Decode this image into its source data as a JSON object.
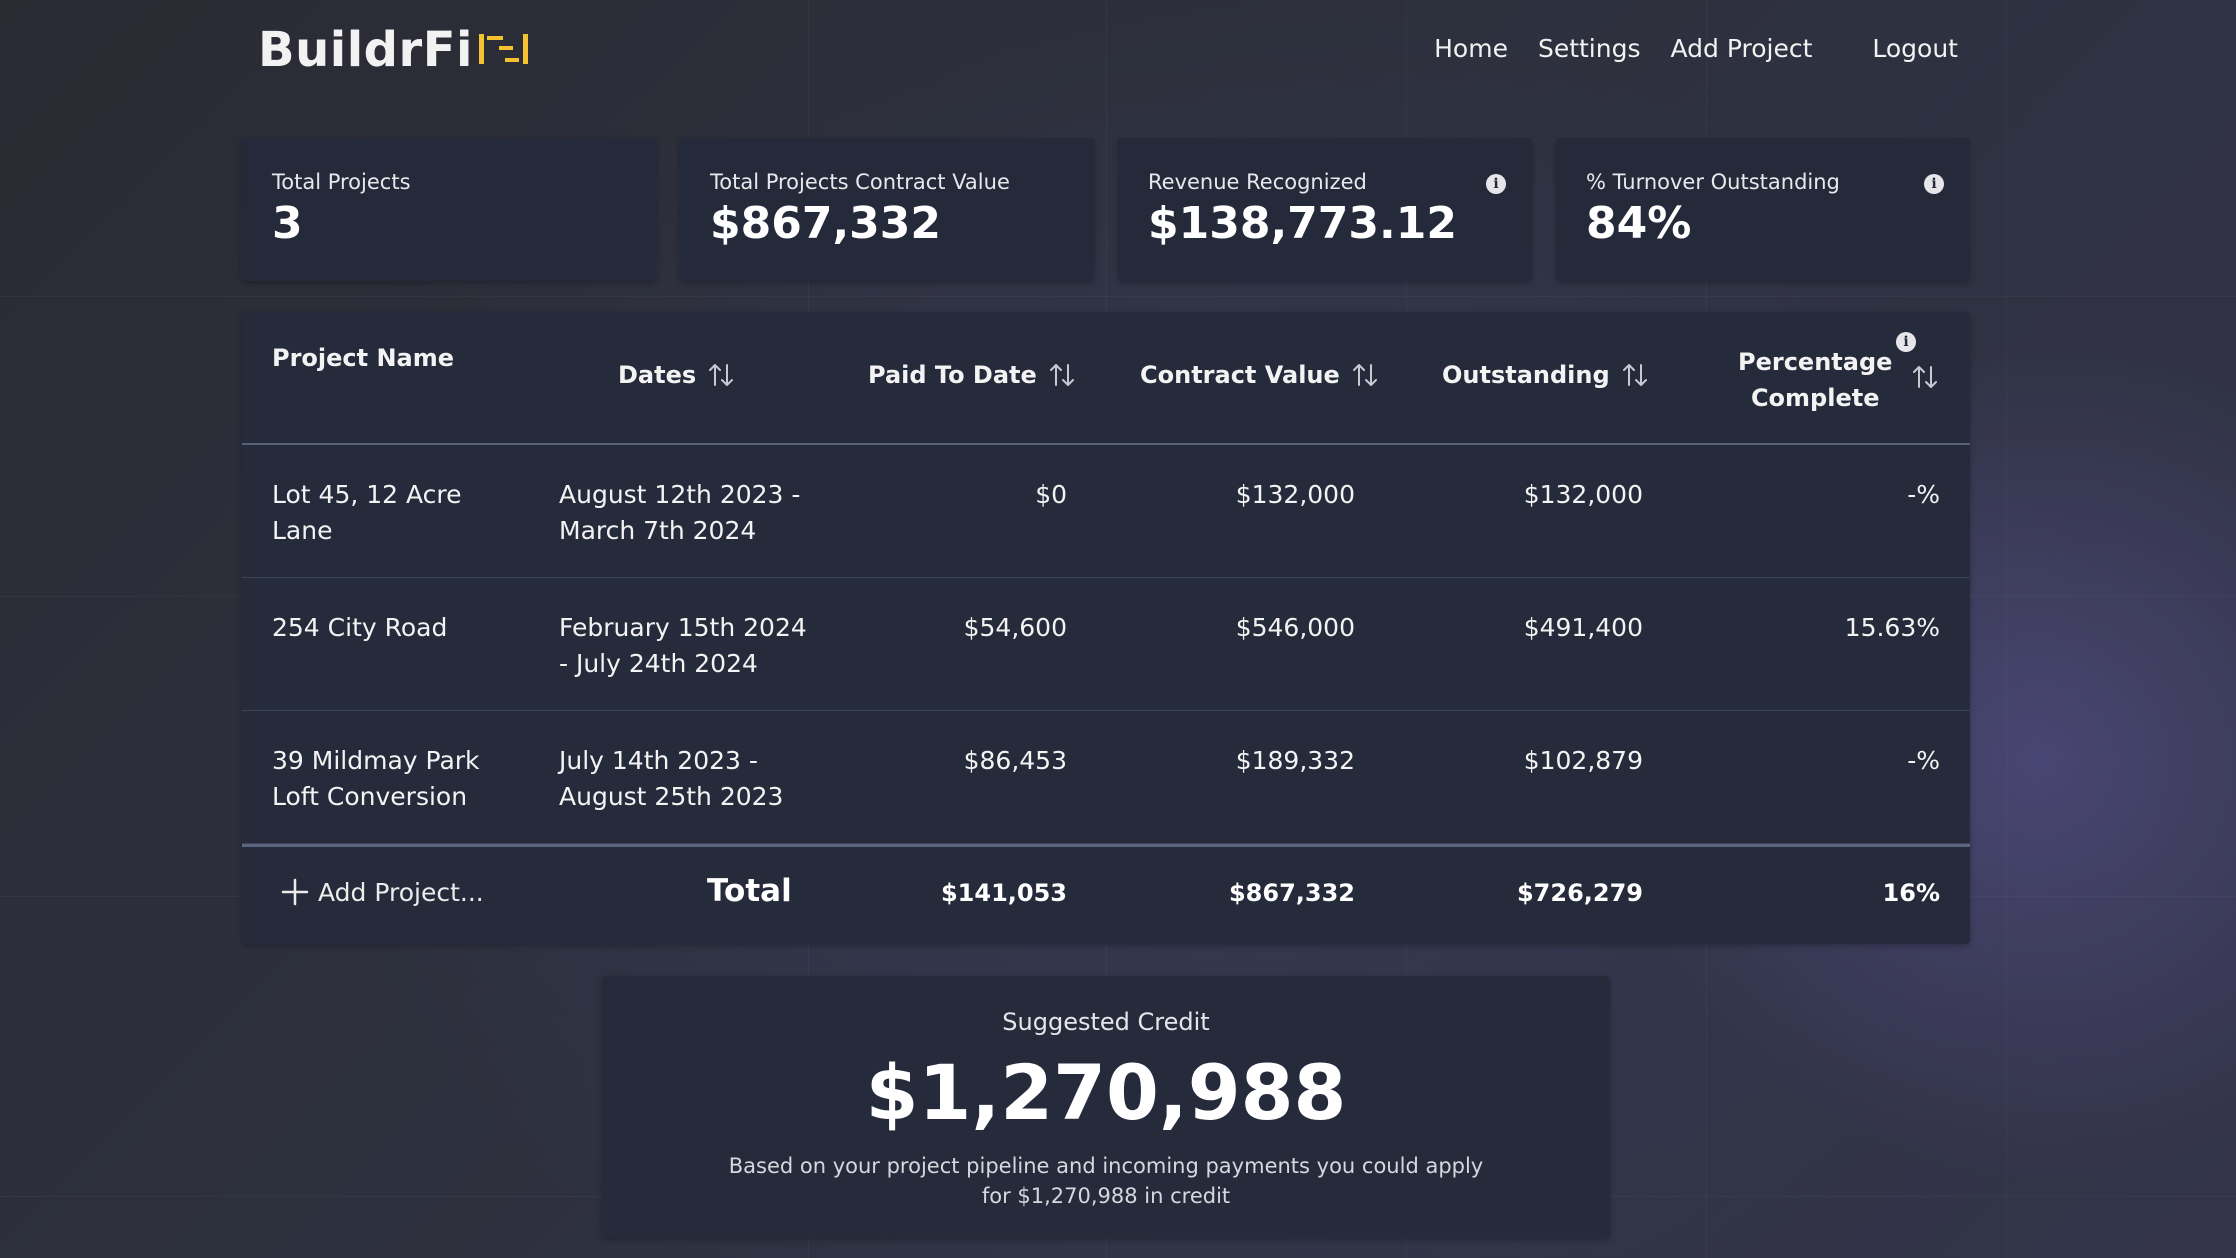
{
  "brand": {
    "name": "BuildrFi",
    "accent": "#f5c330"
  },
  "nav": {
    "home": "Home",
    "settings": "Settings",
    "add_project": "Add Project",
    "logout": "Logout"
  },
  "stats": [
    {
      "label": "Total Projects",
      "value": "3"
    },
    {
      "label": "Total Projects Contract Value",
      "value": "$867,332"
    },
    {
      "label": "Revenue Recognized",
      "value": "$138,773.12",
      "info": true
    },
    {
      "label": "% Turnover Outstanding",
      "value": "84%",
      "info": true
    }
  ],
  "table": {
    "headers": {
      "project_name": "Project Name",
      "dates": "Dates",
      "paid_to_date": "Paid To Date",
      "contract_value": "Contract Value",
      "outstanding": "Outstanding",
      "percentage_complete_1": "Percentage",
      "percentage_complete_2": "Complete"
    },
    "rows": [
      {
        "name_1": "Lot 45, 12 Acre",
        "name_2": "Lane",
        "dates_1": "August 12th 2023 -",
        "dates_2": "March 7th 2024",
        "paid": "$0",
        "contract": "$132,000",
        "outstanding": "$132,000",
        "percent": "-%"
      },
      {
        "name_1": "254 City Road",
        "name_2": "",
        "dates_1": "February 15th 2024",
        "dates_2": "- July 24th 2024",
        "paid": "$54,600",
        "contract": "$546,000",
        "outstanding": "$491,400",
        "percent": "15.63%"
      },
      {
        "name_1": "39 Mildmay Park",
        "name_2": "Loft Conversion",
        "dates_1": "July 14th 2023 -",
        "dates_2": "August 25th 2023",
        "paid": "$86,453",
        "contract": "$189,332",
        "outstanding": "$102,879",
        "percent": "-%"
      }
    ],
    "footer": {
      "add_project": "Add Project...",
      "total_label": "Total",
      "paid": "$141,053",
      "contract": "$867,332",
      "outstanding": "$726,279",
      "percent": "16%"
    }
  },
  "credit": {
    "label": "Suggested Credit",
    "value": "$1,270,988",
    "note_1": "Based on your project pipeline and incoming payments you could apply",
    "note_2": "for $1,270,988 in credit"
  }
}
